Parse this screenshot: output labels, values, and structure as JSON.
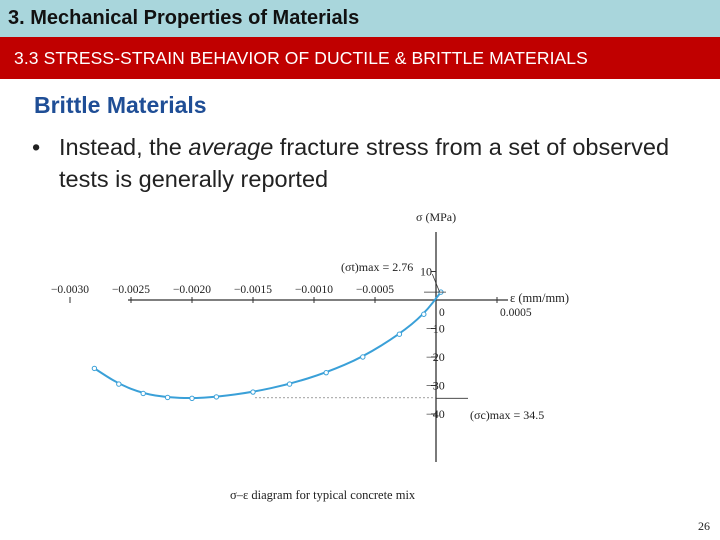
{
  "header": {
    "title": "3. Mechanical Properties of Materials",
    "section": "3.3 STRESS-STRAIN BEHAVIOR OF DUCTILE & BRITTLE MATERIALS"
  },
  "content": {
    "heading": "Brittle Materials",
    "bullet_symbol": "•",
    "bullet_pre": "Instead, the ",
    "bullet_emph": "average",
    "bullet_post": " fracture stress from a set of observed tests is generally reported"
  },
  "figure": {
    "y_axis_label": "σ (MPa)",
    "x_axis_label": "ε (mm/mm)",
    "tensile_label": "(σt)max = 2.76",
    "compressive_label": "(σc)max = 34.5",
    "caption": "σ–ε diagram for typical concrete mix"
  },
  "chart_data": {
    "type": "line",
    "xlabel": "ε (mm/mm)",
    "ylabel": "σ (MPa)",
    "x_ticks": [
      "−0.0030",
      "−0.0025",
      "−0.0020",
      "−0.0015",
      "−0.0010",
      "−0.0005",
      "0",
      "0.0005"
    ],
    "x_tick_values": [
      -0.003,
      -0.0025,
      -0.002,
      -0.0015,
      -0.001,
      -0.0005,
      0,
      0.0005
    ],
    "y_ticks": [
      "10",
      "−10",
      "−20",
      "−30",
      "−40"
    ],
    "y_tick_values": [
      10,
      -10,
      -20,
      -30,
      -40
    ],
    "xlim": [
      -0.0031,
      0.0006
    ],
    "ylim": [
      -42,
      12
    ],
    "annotations": {
      "tensile_max": {
        "value": 2.76
      },
      "compressive_max": {
        "value": -34.5
      }
    },
    "series": [
      {
        "x": [
          4e-05,
          -0.0001,
          -0.0003,
          -0.0006,
          -0.0009,
          -0.0012,
          -0.0015,
          -0.0018,
          -0.002,
          -0.0022,
          -0.0024,
          -0.0026,
          -0.0028
        ],
        "y": [
          2.76,
          -5,
          -12,
          -20,
          -25.5,
          -29.5,
          -32.3,
          -34,
          -34.5,
          -34.2,
          -32.8,
          -29.5,
          -24
        ]
      }
    ]
  },
  "page_number": "26"
}
